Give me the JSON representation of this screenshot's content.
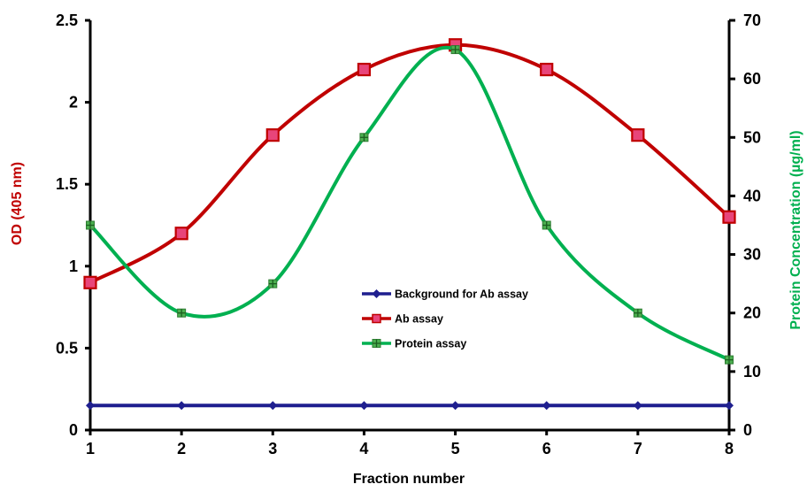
{
  "chart_data": {
    "type": "line",
    "xlabel": "Fraction number",
    "ylabel": "OD (405 nm)",
    "y2label": "Protein Concentration  (µg/ml)",
    "x": [
      1,
      2,
      3,
      4,
      5,
      6,
      7,
      8
    ],
    "xticks": [
      "1",
      "2",
      "3",
      "4",
      "5",
      "6",
      "7",
      "8"
    ],
    "xlim": [
      1,
      8
    ],
    "ylim": [
      0,
      2.5
    ],
    "yticks": [
      "0",
      "0.5",
      "1",
      "1.5",
      "2",
      "2.5"
    ],
    "y2lim": [
      0,
      70
    ],
    "y2ticks": [
      "0",
      "10",
      "20",
      "30",
      "40",
      "50",
      "60",
      "70"
    ],
    "grid": false,
    "legend_position": "center",
    "series": [
      {
        "name": "Background for Ab assay",
        "axis": "left",
        "color": "#1f1f8f",
        "marker": "diamond",
        "values": [
          0.15,
          0.15,
          0.15,
          0.15,
          0.15,
          0.15,
          0.15,
          0.15
        ]
      },
      {
        "name": "Ab assay",
        "axis": "left",
        "color": "#c00000",
        "marker": "square",
        "marker_color": "#e8457a",
        "values": [
          0.9,
          1.2,
          1.8,
          2.2,
          2.35,
          2.2,
          1.8,
          1.3
        ]
      },
      {
        "name": "Protein assay",
        "axis": "right",
        "color": "#00b050",
        "marker": "square-cross",
        "marker_color": "#4caf50",
        "values": [
          35,
          20,
          25,
          50,
          65,
          35,
          20,
          12
        ]
      }
    ],
    "colors": {
      "ylabel": "#c00000",
      "y2label": "#00b050",
      "axis": "#000000"
    }
  }
}
